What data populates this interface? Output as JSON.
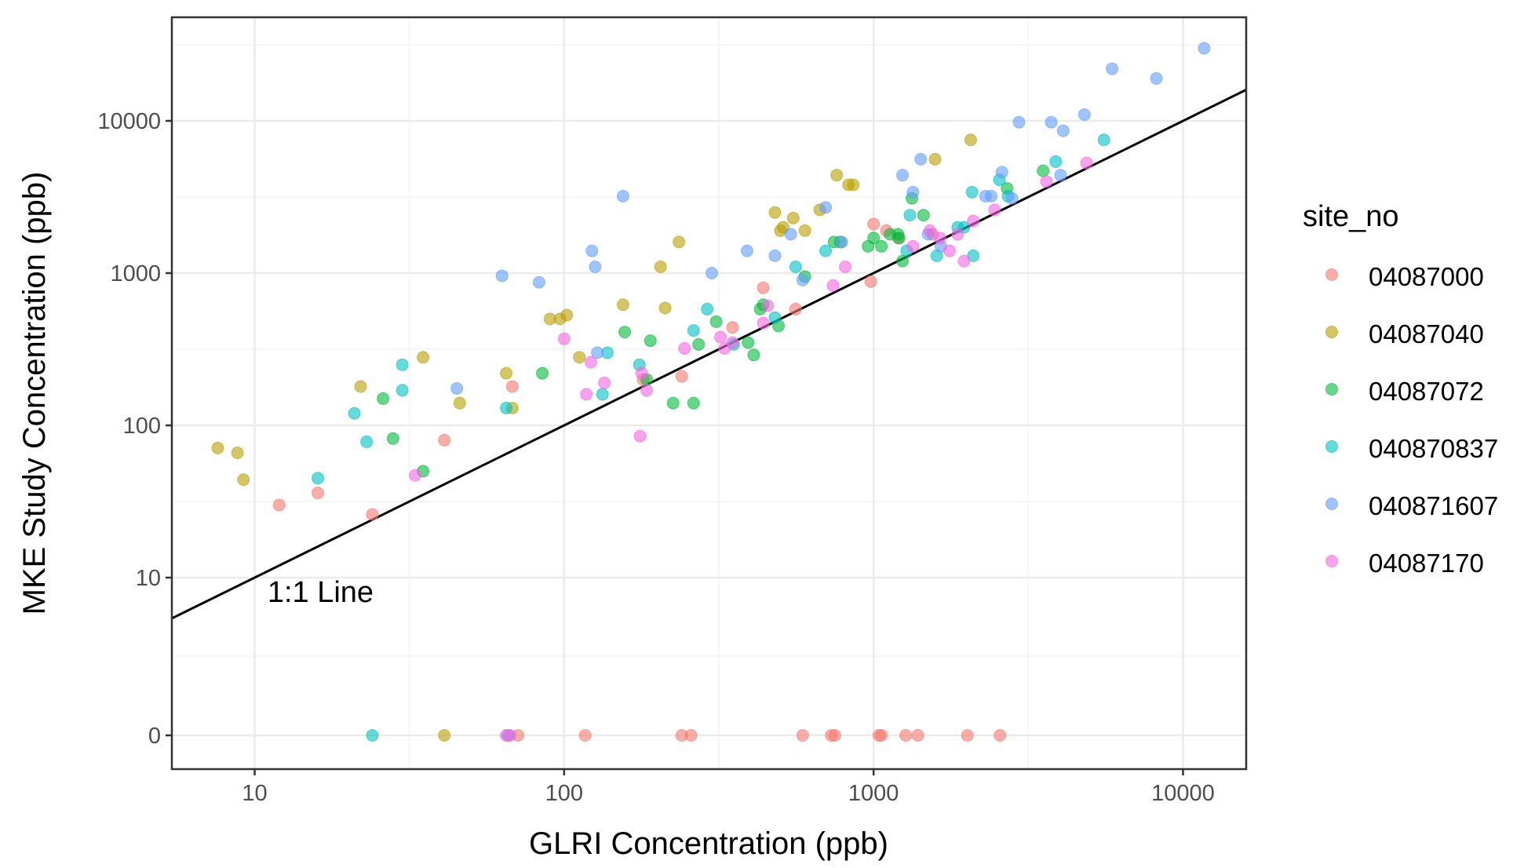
{
  "chart_data": {
    "type": "scatter",
    "xlabel": "GLRI Concentration (ppb)",
    "ylabel": "MKE Study Concentration (ppb)",
    "x_scale": "log10",
    "y_scale": "pseudo-log (0 plotted at bottom)",
    "xlim": [
      5.4,
      16000
    ],
    "ylim": [
      -1.1,
      48000
    ],
    "x_ticks": [
      10,
      100,
      1000,
      10000
    ],
    "x_tick_labels": [
      "10",
      "100",
      "1000",
      "10000"
    ],
    "y_ticks": [
      0,
      10,
      100,
      1000,
      10000
    ],
    "y_tick_labels": [
      "0",
      "10",
      "100",
      "1000",
      "10000"
    ],
    "grid": true,
    "reference_line": {
      "label": "1:1 Line",
      "slope": 1,
      "intercept": 0,
      "label_at": [
        11,
        8
      ]
    },
    "legend": {
      "title": "site_no",
      "placement": "right"
    },
    "colors": {
      "04087000": "#F8766D",
      "04087040": "#B79F00",
      "04087072": "#00BA38",
      "040870837": "#00BFC4",
      "040871607": "#619CFF",
      "04087170": "#F564E3"
    },
    "series": [
      {
        "name": "04087000",
        "points": [
          [
            12,
            30
          ],
          [
            16,
            36
          ],
          [
            24,
            26
          ],
          [
            41,
            80
          ],
          [
            68,
            180
          ],
          [
            180,
            200
          ],
          [
            240,
            210
          ],
          [
            350,
            440
          ],
          [
            440,
            800
          ],
          [
            560,
            580
          ],
          [
            980,
            880
          ],
          [
            1000,
            2100
          ],
          [
            1100,
            1900
          ],
          [
            1200,
            1700
          ],
          [
            1550,
            1800
          ],
          [
            71,
            0
          ],
          [
            117,
            0
          ],
          [
            240,
            0
          ],
          [
            257,
            0
          ],
          [
            590,
            0
          ],
          [
            730,
            0
          ],
          [
            750,
            0
          ],
          [
            1040,
            0
          ],
          [
            1060,
            0
          ],
          [
            1270,
            0
          ],
          [
            1390,
            0
          ],
          [
            2010,
            0
          ],
          [
            2560,
            0
          ]
        ]
      },
      {
        "name": "04087040",
        "points": [
          [
            7.6,
            71
          ],
          [
            8.8,
            66
          ],
          [
            9.2,
            44
          ],
          [
            22,
            180
          ],
          [
            35,
            280
          ],
          [
            46,
            140
          ],
          [
            65,
            220
          ],
          [
            68,
            130
          ],
          [
            90,
            500
          ],
          [
            97,
            500
          ],
          [
            102,
            530
          ],
          [
            112,
            280
          ],
          [
            155,
            620
          ],
          [
            205,
            1100
          ],
          [
            212,
            590
          ],
          [
            235,
            1600
          ],
          [
            480,
            2500
          ],
          [
            500,
            1900
          ],
          [
            510,
            2000
          ],
          [
            550,
            2300
          ],
          [
            600,
            1900
          ],
          [
            670,
            2600
          ],
          [
            760,
            4400
          ],
          [
            830,
            3800
          ],
          [
            860,
            3800
          ],
          [
            1580,
            5600
          ],
          [
            2060,
            7500
          ],
          [
            41,
            0
          ]
        ]
      },
      {
        "name": "04087072",
        "points": [
          [
            26,
            150
          ],
          [
            28,
            82
          ],
          [
            35,
            50
          ],
          [
            85,
            220
          ],
          [
            157,
            410
          ],
          [
            185,
            200
          ],
          [
            190,
            360
          ],
          [
            225,
            140
          ],
          [
            262,
            140
          ],
          [
            272,
            340
          ],
          [
            310,
            480
          ],
          [
            393,
            350
          ],
          [
            410,
            290
          ],
          [
            430,
            580
          ],
          [
            440,
            620
          ],
          [
            493,
            450
          ],
          [
            600,
            950
          ],
          [
            745,
            1600
          ],
          [
            780,
            1600
          ],
          [
            960,
            1500
          ],
          [
            1000,
            1700
          ],
          [
            1060,
            1500
          ],
          [
            1130,
            1800
          ],
          [
            1200,
            1800
          ],
          [
            1210,
            1700
          ],
          [
            1240,
            1200
          ],
          [
            1330,
            3100
          ],
          [
            1450,
            2400
          ],
          [
            3530,
            4700
          ],
          [
            2700,
            3600
          ]
        ]
      },
      {
        "name": "040870837",
        "points": [
          [
            16,
            45
          ],
          [
            21,
            120
          ],
          [
            23,
            78
          ],
          [
            30,
            170
          ],
          [
            30,
            250
          ],
          [
            65,
            130
          ],
          [
            133,
            160
          ],
          [
            138,
            300
          ],
          [
            175,
            250
          ],
          [
            262,
            420
          ],
          [
            290,
            580
          ],
          [
            353,
            340
          ],
          [
            480,
            510
          ],
          [
            560,
            1100
          ],
          [
            700,
            1400
          ],
          [
            1280,
            1400
          ],
          [
            1310,
            2400
          ],
          [
            1600,
            1300
          ],
          [
            1870,
            2000
          ],
          [
            1960,
            2000
          ],
          [
            2080,
            3400
          ],
          [
            2100,
            1300
          ],
          [
            2550,
            4100
          ],
          [
            2720,
            3200
          ],
          [
            3880,
            5400
          ],
          [
            5550,
            7500
          ],
          [
            24,
            0
          ],
          [
            66,
            0
          ]
        ]
      },
      {
        "name": "040871607",
        "points": [
          [
            45,
            175
          ],
          [
            63,
            960
          ],
          [
            83,
            870
          ],
          [
            123,
            1400
          ],
          [
            126,
            1100
          ],
          [
            128,
            300
          ],
          [
            155,
            3200
          ],
          [
            300,
            1000
          ],
          [
            390,
            1400
          ],
          [
            480,
            1300
          ],
          [
            540,
            1800
          ],
          [
            590,
            900
          ],
          [
            700,
            2700
          ],
          [
            790,
            1600
          ],
          [
            1240,
            4400
          ],
          [
            1340,
            3400
          ],
          [
            1420,
            5600
          ],
          [
            1500,
            1800
          ],
          [
            1650,
            1500
          ],
          [
            2300,
            3200
          ],
          [
            2400,
            3200
          ],
          [
            2600,
            4600
          ],
          [
            2800,
            3100
          ],
          [
            2950,
            9800
          ],
          [
            3750,
            9800
          ],
          [
            4100,
            8600
          ],
          [
            4020,
            4400
          ],
          [
            4800,
            11000
          ],
          [
            5900,
            22000
          ],
          [
            8200,
            19000
          ],
          [
            11700,
            30000
          ]
        ]
      },
      {
        "name": "04087170",
        "points": [
          [
            33,
            47
          ],
          [
            100,
            370
          ],
          [
            118,
            160
          ],
          [
            122,
            260
          ],
          [
            135,
            190
          ],
          [
            176,
            85
          ],
          [
            178,
            220
          ],
          [
            185,
            170
          ],
          [
            245,
            320
          ],
          [
            320,
            380
          ],
          [
            330,
            320
          ],
          [
            350,
            350
          ],
          [
            440,
            470
          ],
          [
            455,
            610
          ],
          [
            740,
            830
          ],
          [
            810,
            1100
          ],
          [
            1340,
            1500
          ],
          [
            1520,
            1900
          ],
          [
            1640,
            1700
          ],
          [
            1760,
            1400
          ],
          [
            1870,
            1800
          ],
          [
            1960,
            1200
          ],
          [
            2100,
            2200
          ],
          [
            2460,
            2600
          ],
          [
            3620,
            4000
          ],
          [
            4880,
            5300
          ],
          [
            65,
            0
          ],
          [
            67,
            0
          ]
        ]
      }
    ]
  }
}
